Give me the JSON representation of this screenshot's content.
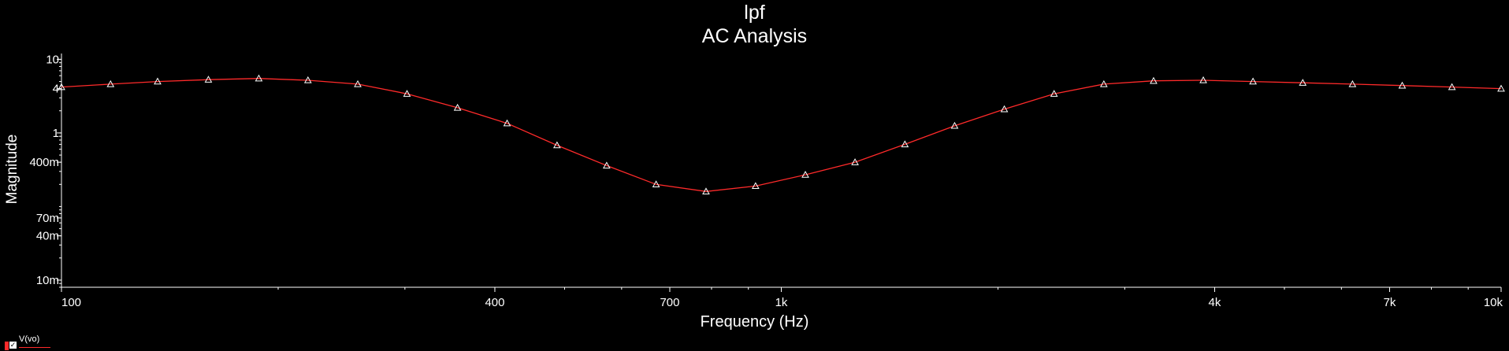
{
  "chart_data": {
    "type": "line",
    "title": "lpf",
    "subtitle": "AC Analysis",
    "xlabel": "Frequency (Hz)",
    "ylabel": "Magnitude",
    "x_scale": "log",
    "y_scale": "log",
    "xlim": [
      100,
      10000
    ],
    "ylim": [
      0.008,
      12
    ],
    "grid": false,
    "x_ticks": [
      {
        "value": 100,
        "label": "100"
      },
      {
        "value": 400,
        "label": "400"
      },
      {
        "value": 700,
        "label": "700"
      },
      {
        "value": 1000,
        "label": "1k"
      },
      {
        "value": 4000,
        "label": "4k"
      },
      {
        "value": 7000,
        "label": "7k"
      },
      {
        "value": 10000,
        "label": "10k"
      }
    ],
    "y_ticks": [
      {
        "value": 10,
        "label": "10"
      },
      {
        "value": 4,
        "label": "4"
      },
      {
        "value": 1,
        "label": "1"
      },
      {
        "value": 0.4,
        "label": "400m"
      },
      {
        "value": 0.07,
        "label": "70m"
      },
      {
        "value": 0.04,
        "label": "40m"
      },
      {
        "value": 0.01,
        "label": "10m"
      }
    ],
    "series": [
      {
        "name": "V(vo)",
        "color": "#ff2a2a",
        "marker": "triangle",
        "x": [
          100,
          117,
          136,
          160,
          188,
          220,
          258,
          302,
          355,
          416,
          488,
          572,
          670,
          786,
          921,
          1080,
          1266,
          1485,
          1741,
          2041,
          2393,
          2806,
          3290,
          3857,
          4522,
          5302,
          6216,
          7288,
          8545,
          10000
        ],
        "y": [
          4.2,
          4.6,
          5.0,
          5.3,
          5.5,
          5.2,
          4.6,
          3.4,
          2.2,
          1.35,
          0.68,
          0.36,
          0.2,
          0.16,
          0.19,
          0.27,
          0.4,
          0.7,
          1.25,
          2.1,
          3.4,
          4.6,
          5.1,
          5.2,
          5.0,
          4.8,
          4.6,
          4.4,
          4.2,
          4.0
        ]
      }
    ],
    "legend": "bottom-left"
  }
}
